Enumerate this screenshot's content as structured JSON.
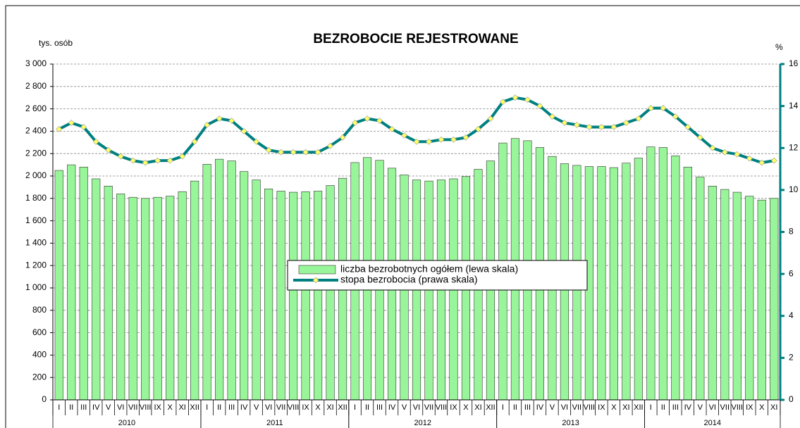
{
  "chart_data": {
    "type": "bar",
    "title": "BEZROBOCIE REJESTROWANE",
    "y_label": "tys. osób",
    "y2_label": "%",
    "categories": [
      "I",
      "II",
      "III",
      "IV",
      "V",
      "VI",
      "VII",
      "VIII",
      "IX",
      "X",
      "XI",
      "XII",
      "I",
      "II",
      "III",
      "IV",
      "V",
      "VI",
      "VII",
      "VIII",
      "IX",
      "X",
      "XI",
      "XII",
      "I",
      "II",
      "III",
      "IV",
      "V",
      "VI",
      "VII",
      "VIII",
      "IX",
      "X",
      "XI",
      "XII",
      "I",
      "II",
      "III",
      "IV",
      "V",
      "VI",
      "VII",
      "VIII",
      "IX",
      "X",
      "XI",
      "XII",
      "I",
      "II",
      "III",
      "IV",
      "V",
      "VI",
      "VII",
      "VIII",
      "IX",
      "X",
      "XI"
    ],
    "years": [
      "2010",
      "2011",
      "2012",
      "2013",
      "2014"
    ],
    "series": [
      {
        "name": "liczba bezrobotnych ogółem (lewa skala)",
        "type": "bar",
        "color": "#99f599",
        "values": [
          2050,
          2100,
          2080,
          1975,
          1910,
          1840,
          1810,
          1800,
          1810,
          1820,
          1860,
          1955,
          2105,
          2150,
          2135,
          2040,
          1965,
          1885,
          1865,
          1855,
          1860,
          1865,
          1915,
          1980,
          2120,
          2165,
          2140,
          2070,
          2010,
          1965,
          1955,
          1965,
          1975,
          1995,
          2060,
          2135,
          2295,
          2335,
          2315,
          2255,
          2175,
          2110,
          2095,
          2085,
          2085,
          2075,
          2115,
          2160,
          2260,
          2255,
          2180,
          2080,
          1990,
          1910,
          1880,
          1855,
          1820,
          1785,
          1800
        ]
      },
      {
        "name": "stopa bezrobocia (prawa skala)",
        "type": "line",
        "axis": "y2",
        "color": "#008080",
        "marker_color": "#ffff66",
        "values": [
          12.9,
          13.2,
          13.0,
          12.3,
          11.9,
          11.6,
          11.4,
          11.3,
          11.4,
          11.4,
          11.6,
          12.3,
          13.1,
          13.4,
          13.3,
          12.8,
          12.3,
          11.9,
          11.8,
          11.8,
          11.8,
          11.8,
          12.1,
          12.5,
          13.2,
          13.4,
          13.3,
          12.9,
          12.6,
          12.3,
          12.3,
          12.4,
          12.4,
          12.5,
          12.9,
          13.4,
          14.2,
          14.4,
          14.3,
          14.0,
          13.5,
          13.2,
          13.1,
          13.0,
          13.0,
          13.0,
          13.2,
          13.4,
          13.9,
          13.9,
          13.5,
          13.0,
          12.5,
          12.0,
          11.8,
          11.7,
          11.5,
          11.3,
          11.4
        ]
      }
    ],
    "ylim": [
      0,
      3000
    ],
    "yticks": [
      0,
      200,
      400,
      600,
      800,
      {
        "value": 1000,
        "label": "1 000"
      },
      {
        "value": 1200,
        "label": "1 200"
      },
      {
        "value": 1400,
        "label": "1 400"
      },
      {
        "value": 1600,
        "label": "1 600"
      },
      {
        "value": 1800,
        "label": "1 800"
      },
      {
        "value": 2000,
        "label": "2 000"
      },
      {
        "value": 2200,
        "label": "2 200"
      },
      {
        "value": 2400,
        "label": "2 400"
      },
      {
        "value": 2600,
        "label": "2 600"
      },
      {
        "value": 2800,
        "label": "2 800"
      },
      {
        "value": 3000,
        "label": "3 000"
      }
    ],
    "y2lim": [
      0,
      16
    ],
    "y2ticks": [
      0,
      2,
      4,
      6,
      8,
      10,
      12,
      14,
      16
    ],
    "grid": true
  }
}
